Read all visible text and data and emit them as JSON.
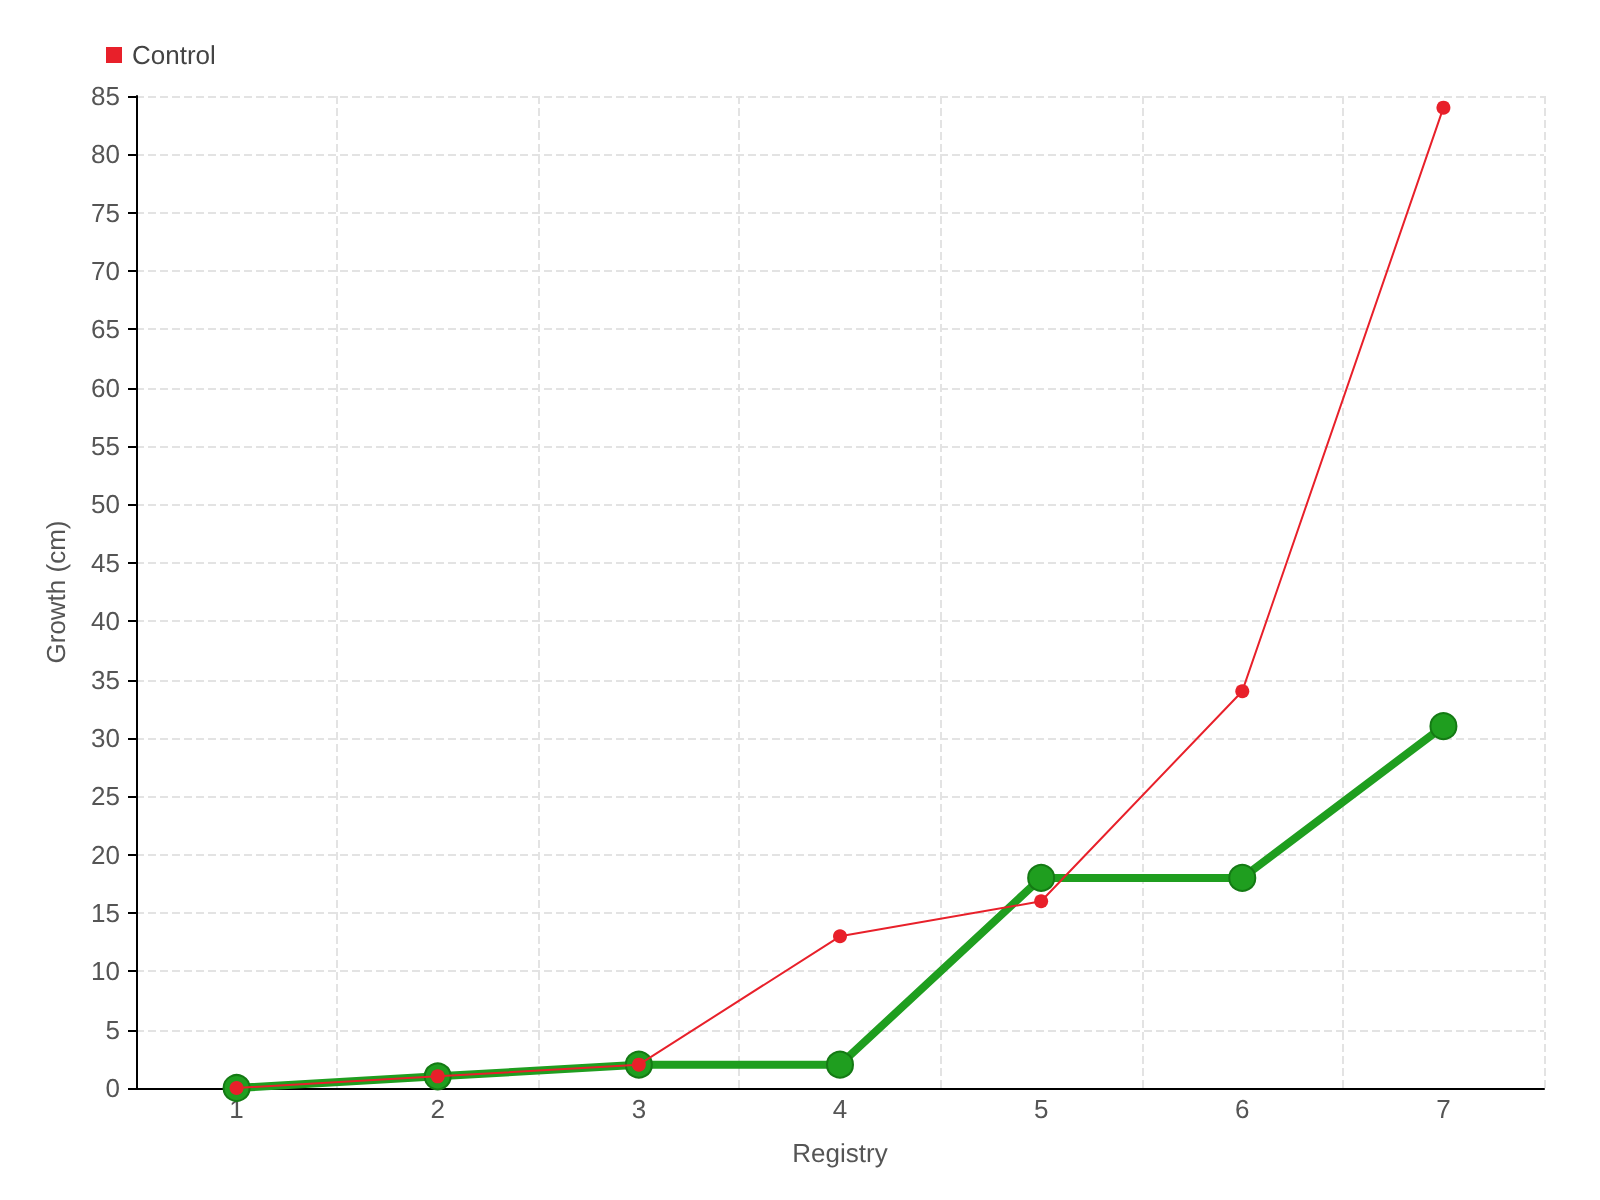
{
  "chart_data": {
    "type": "line",
    "xlabel": "Registry",
    "ylabel": "Growth (cm)",
    "categories": [
      "1",
      "2",
      "3",
      "4",
      "5",
      "6",
      "7"
    ],
    "series": [
      {
        "color": "#1f9e1f",
        "values": [
          0,
          1,
          2,
          2,
          18,
          18,
          31
        ]
      },
      {
        "name": "Control",
        "color": "#e8202a",
        "values": [
          0,
          1,
          2,
          13,
          16,
          34,
          84
        ]
      }
    ],
    "ylim": [
      0,
      85
    ],
    "yticks": [
      0,
      5,
      10,
      15,
      20,
      25,
      30,
      35,
      40,
      45,
      50,
      55,
      60,
      65,
      70,
      75,
      80,
      85
    ],
    "grid": true,
    "legend": "top left",
    "marker": "circle"
  }
}
